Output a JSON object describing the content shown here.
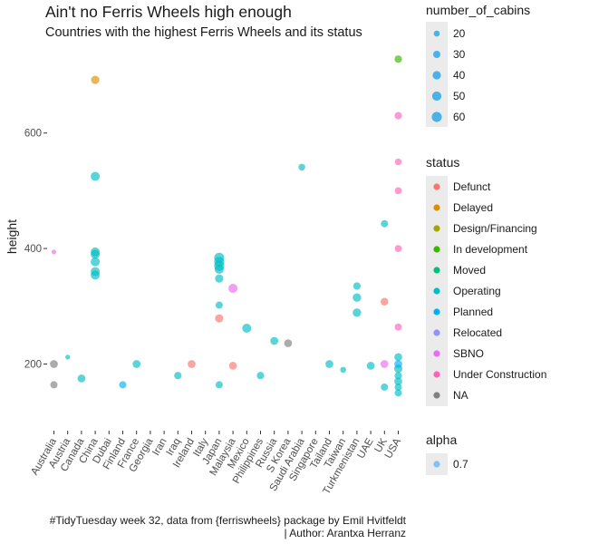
{
  "title": "Ain't no Ferris Wheels high enough",
  "subtitle": "Countries with the highest Ferris Wheels and its status",
  "caption_line1": "#TidyTuesday week 32, data from {ferriswheels} package by Emil Hvitfeldt",
  "caption_line2": "| Author: Arantxa Herranz",
  "chart_data": {
    "type": "scatter",
    "xlabel": "",
    "ylabel": "height",
    "categories": [
      "Australia",
      "Austria",
      "Canada",
      "China",
      "Dubai",
      "Finland",
      "France",
      "Georgia",
      "Iran",
      "Iraq",
      "Ireland",
      "Italy",
      "Japan",
      "Malaysia",
      "Mexico",
      "Philippines",
      "Russia",
      "S Korea",
      "Saudi Arabia",
      "Singapore",
      "Tailand",
      "Taiwan",
      "Turkmenistan",
      "UAE",
      "UK",
      "USA"
    ],
    "ylim": [
      105,
      755
    ],
    "y_ticks": [
      200,
      400,
      600
    ],
    "grid": false,
    "status_colors": {
      "Defunct": "#F8766D",
      "Delayed": "#D89000",
      "Design/Financing": "#A3A500",
      "In development": "#39B600",
      "Moved": "#00BF7D",
      "Operating": "#00BFC4",
      "Planned": "#00B0F6",
      "Relocated": "#9590FF",
      "SBNO": "#E76BF3",
      "Under Construction": "#FF62BC",
      "NA": "#808080"
    },
    "points": [
      {
        "country": "Australia",
        "height": 394,
        "cabins": 12,
        "status": "SBNO"
      },
      {
        "country": "Australia",
        "height": 200,
        "cabins": 36,
        "status": "NA"
      },
      {
        "country": "Australia",
        "height": 164,
        "cabins": 30,
        "status": "NA"
      },
      {
        "country": "Austria",
        "height": 212,
        "cabins": 12,
        "status": "Operating"
      },
      {
        "country": "Canada",
        "height": 175,
        "cabins": 36,
        "status": "Operating"
      },
      {
        "country": "China",
        "height": 692,
        "cabins": 40,
        "status": "Delayed"
      },
      {
        "country": "China",
        "height": 525,
        "cabins": 48,
        "status": "Operating"
      },
      {
        "country": "China",
        "height": 394,
        "cabins": 48,
        "status": "Operating"
      },
      {
        "country": "China",
        "height": 390,
        "cabins": 48,
        "status": "Operating"
      },
      {
        "country": "China",
        "height": 377,
        "cabins": 48,
        "status": "Operating"
      },
      {
        "country": "China",
        "height": 360,
        "cabins": 48,
        "status": "Operating"
      },
      {
        "country": "China",
        "height": 354,
        "cabins": 48,
        "status": "Operating"
      },
      {
        "country": "Finland",
        "height": 164,
        "cabins": 30,
        "status": "Planned"
      },
      {
        "country": "France",
        "height": 200,
        "cabins": 36,
        "status": "Operating"
      },
      {
        "country": "Iraq",
        "height": 180,
        "cabins": 32,
        "status": "Operating"
      },
      {
        "country": "Ireland",
        "height": 200,
        "cabins": 36,
        "status": "Defunct"
      },
      {
        "country": "Japan",
        "height": 384,
        "cabins": 60,
        "status": "Operating"
      },
      {
        "country": "Japan",
        "height": 377,
        "cabins": 60,
        "status": "Operating"
      },
      {
        "country": "Japan",
        "height": 370,
        "cabins": 60,
        "status": "Operating"
      },
      {
        "country": "Japan",
        "height": 364,
        "cabins": 48,
        "status": "Operating"
      },
      {
        "country": "Japan",
        "height": 348,
        "cabins": 40,
        "status": "Operating"
      },
      {
        "country": "Japan",
        "height": 302,
        "cabins": 30,
        "status": "Operating"
      },
      {
        "country": "Japan",
        "height": 279,
        "cabins": 40,
        "status": "Defunct"
      },
      {
        "country": "Japan",
        "height": 164,
        "cabins": 30,
        "status": "Operating"
      },
      {
        "country": "Malaysia",
        "height": 331,
        "cabins": 48,
        "status": "SBNO"
      },
      {
        "country": "Malaysia",
        "height": 197,
        "cabins": 36,
        "status": "Defunct"
      },
      {
        "country": "Mexico",
        "height": 262,
        "cabins": 48,
        "status": "Operating"
      },
      {
        "country": "Philippines",
        "height": 180,
        "cabins": 32,
        "status": "Operating"
      },
      {
        "country": "Russia",
        "height": 240,
        "cabins": 36,
        "status": "Operating"
      },
      {
        "country": "S Korea",
        "height": 236,
        "cabins": 36,
        "status": "NA"
      },
      {
        "country": "Saudi Arabia",
        "height": 541,
        "cabins": 26,
        "status": "Operating"
      },
      {
        "country": "Tailand",
        "height": 200,
        "cabins": 36,
        "status": "Operating"
      },
      {
        "country": "Taiwan",
        "height": 190,
        "cabins": 20,
        "status": "Operating"
      },
      {
        "country": "Turkmenistan",
        "height": 335,
        "cabins": 32,
        "status": "Operating"
      },
      {
        "country": "Turkmenistan",
        "height": 315,
        "cabins": 42,
        "status": "Operating"
      },
      {
        "country": "Turkmenistan",
        "height": 289,
        "cabins": 42,
        "status": "Operating"
      },
      {
        "country": "UAE",
        "height": 197,
        "cabins": 36,
        "status": "Operating"
      },
      {
        "country": "UK",
        "height": 443,
        "cabins": 30,
        "status": "Operating"
      },
      {
        "country": "UK",
        "height": 308,
        "cabins": 34,
        "status": "Defunct"
      },
      {
        "country": "UK",
        "height": 200,
        "cabins": 36,
        "status": "SBNO"
      },
      {
        "country": "UK",
        "height": 160,
        "cabins": 30,
        "status": "Operating"
      },
      {
        "country": "USA",
        "height": 728,
        "cabins": 32,
        "status": "In development"
      },
      {
        "country": "USA",
        "height": 630,
        "cabins": 32,
        "status": "Under Construction"
      },
      {
        "country": "USA",
        "height": 550,
        "cabins": 26,
        "status": "Under Construction"
      },
      {
        "country": "USA",
        "height": 500,
        "cabins": 28,
        "status": "Under Construction"
      },
      {
        "country": "USA",
        "height": 400,
        "cabins": 28,
        "status": "Under Construction"
      },
      {
        "country": "USA",
        "height": 264,
        "cabins": 30,
        "status": "Under Construction"
      },
      {
        "country": "USA",
        "height": 212,
        "cabins": 36,
        "status": "Operating"
      },
      {
        "country": "USA",
        "height": 200,
        "cabins": 36,
        "status": "Planned"
      },
      {
        "country": "USA",
        "height": 192,
        "cabins": 40,
        "status": "Operating"
      },
      {
        "country": "USA",
        "height": 180,
        "cabins": 32,
        "status": "Operating"
      },
      {
        "country": "USA",
        "height": 170,
        "cabins": 36,
        "status": "Operating"
      },
      {
        "country": "USA",
        "height": 160,
        "cabins": 30,
        "status": "Operating"
      },
      {
        "country": "USA",
        "height": 150,
        "cabins": 30,
        "status": "Operating"
      }
    ]
  },
  "legend": {
    "size_title": "number_of_cabins",
    "size_entries": [
      {
        "label": "20",
        "cabins": 20
      },
      {
        "label": "30",
        "cabins": 30
      },
      {
        "label": "40",
        "cabins": 40
      },
      {
        "label": "50",
        "cabins": 50
      },
      {
        "label": "60",
        "cabins": 60
      }
    ],
    "status_title": "status",
    "status_entries": [
      "Defunct",
      "Delayed",
      "Design/Financing",
      "In development",
      "Moved",
      "Operating",
      "Planned",
      "Relocated",
      "SBNO",
      "Under Construction",
      "NA"
    ],
    "alpha_title": "alpha",
    "alpha_entries": [
      "0.7"
    ],
    "alpha_color": "#56B1F7",
    "legend_point_color": "#2EA8E6",
    "key_bg": "#EBEBEB"
  }
}
